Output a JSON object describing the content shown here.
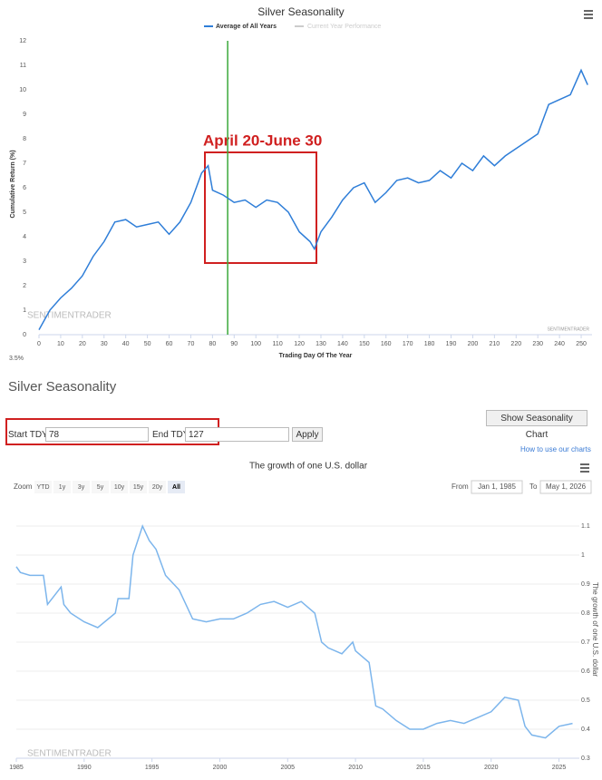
{
  "chart_data": [
    {
      "type": "line",
      "title": "Silver Seasonality",
      "legend": [
        "Average of All Years",
        "Current Year Performance"
      ],
      "x_label": "Trading Day Of The Year",
      "y_label": "Cumulative Return (%)",
      "annotation": "April 20-June 30",
      "corner_note": "3.5%",
      "watermark": "SENTIMENTRADER",
      "credit": "SENTIMENTRADER",
      "vline": 87,
      "x": [
        0,
        5,
        10,
        15,
        20,
        25,
        30,
        35,
        40,
        45,
        50,
        55,
        60,
        65,
        70,
        75,
        78,
        80,
        85,
        90,
        95,
        100,
        105,
        110,
        115,
        120,
        125,
        127,
        130,
        135,
        140,
        145,
        150,
        155,
        160,
        165,
        170,
        175,
        180,
        185,
        190,
        195,
        200,
        205,
        210,
        215,
        220,
        225,
        230,
        235,
        240,
        245,
        250,
        253
      ],
      "series": [
        {
          "name": "Average of All Years",
          "color": "#2f7ed8",
          "values": [
            0.2,
            1.0,
            1.5,
            1.9,
            2.4,
            3.2,
            3.8,
            4.6,
            4.7,
            4.4,
            4.5,
            4.6,
            4.1,
            4.6,
            5.4,
            6.6,
            6.9,
            5.9,
            5.7,
            5.4,
            5.5,
            5.2,
            5.5,
            5.4,
            5.0,
            4.2,
            3.8,
            3.5,
            4.2,
            4.8,
            5.5,
            6.0,
            6.2,
            5.4,
            5.8,
            6.3,
            6.4,
            6.2,
            6.3,
            6.7,
            6.4,
            7.0,
            6.7,
            7.3,
            6.9,
            7.3,
            7.6,
            7.9,
            8.2,
            9.4,
            9.6,
            9.8,
            10.8,
            10.2
          ]
        }
      ],
      "xlim": [
        0,
        255
      ],
      "ylim": [
        0,
        12
      ],
      "xticks": [
        0,
        10,
        20,
        30,
        40,
        50,
        60,
        70,
        80,
        90,
        100,
        110,
        120,
        130,
        140,
        150,
        160,
        170,
        180,
        190,
        200,
        210,
        220,
        230,
        240,
        250
      ],
      "yticks": [
        0,
        1,
        2,
        3,
        4,
        5,
        6,
        7,
        8,
        9,
        10,
        11,
        12
      ]
    },
    {
      "type": "line",
      "title": "The growth of one U.S. dollar",
      "y_label": "The growth of one U.S. dollar",
      "watermark": "SENTIMENTRADER",
      "x": [
        1985,
        1985.3,
        1986,
        1987,
        1987.3,
        1988.3,
        1988.5,
        1989,
        1990,
        1991,
        1992.3,
        1992.5,
        1993.3,
        1993.6,
        1994.3,
        1994.8,
        1995.3,
        1996,
        1997,
        1998,
        1999,
        2000,
        2001,
        2002,
        2003,
        2004,
        2005,
        2006,
        2007,
        2007.5,
        2008,
        2009,
        2009.8,
        2010,
        2011,
        2011.5,
        2012,
        2013,
        2014,
        2015,
        2016,
        2017,
        2018,
        2019,
        2020,
        2021,
        2022,
        2022.5,
        2023,
        2024,
        2025,
        2026
      ],
      "series": [
        {
          "name": "The growth of one U.S. dollar",
          "color": "#7cb5ec",
          "values": [
            0.96,
            0.94,
            0.93,
            0.93,
            0.83,
            0.89,
            0.83,
            0.8,
            0.77,
            0.75,
            0.8,
            0.85,
            0.85,
            1.0,
            1.1,
            1.05,
            1.02,
            0.93,
            0.88,
            0.78,
            0.77,
            0.78,
            0.78,
            0.8,
            0.83,
            0.84,
            0.82,
            0.84,
            0.8,
            0.7,
            0.68,
            0.66,
            0.7,
            0.67,
            0.63,
            0.48,
            0.47,
            0.43,
            0.4,
            0.4,
            0.42,
            0.43,
            0.42,
            0.44,
            0.46,
            0.51,
            0.5,
            0.41,
            0.38,
            0.37,
            0.41,
            0.42
          ]
        }
      ],
      "xlim": [
        1985,
        2026.5
      ],
      "ylim": [
        0.3,
        1.15
      ],
      "xticks": [
        1985,
        1990,
        1995,
        2000,
        2005,
        2010,
        2015,
        2020,
        2025
      ],
      "yticks": [
        0.3,
        0.4,
        0.5,
        0.6,
        0.7,
        0.8,
        0.9,
        1,
        1.1
      ]
    }
  ],
  "form": {
    "heading": "Silver Seasonality",
    "start_label": "Start TDY:",
    "start_value": "78",
    "end_label": "End TDY:",
    "end_value": "127",
    "apply": "Apply",
    "show_chart": "Show Seasonality Chart",
    "help_link": "How to use our charts"
  },
  "toolbar": {
    "zoom": "Zoom",
    "buttons": [
      "YTD",
      "1y",
      "3y",
      "5y",
      "10y",
      "15y",
      "20y",
      "All"
    ],
    "from_label": "From",
    "from_value": "Jan 1, 1985",
    "to_label": "To",
    "to_value": "May 1, 2026"
  }
}
